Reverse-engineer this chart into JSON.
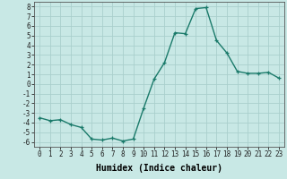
{
  "x": [
    0,
    1,
    2,
    3,
    4,
    5,
    6,
    7,
    8,
    9,
    10,
    11,
    12,
    13,
    14,
    15,
    16,
    17,
    18,
    19,
    20,
    21,
    22,
    23
  ],
  "y": [
    -3.5,
    -3.8,
    -3.7,
    -4.2,
    -4.5,
    -5.7,
    -5.8,
    -5.6,
    -5.9,
    -5.7,
    -2.5,
    0.5,
    2.2,
    5.3,
    5.2,
    7.8,
    7.9,
    4.5,
    3.2,
    1.3,
    1.1,
    1.1,
    1.2,
    0.6
  ],
  "color": "#1a7a6a",
  "bg_color": "#c8e8e5",
  "grid_color": "#aacfcc",
  "xlabel": "Humidex (Indice chaleur)",
  "xlim": [
    -0.5,
    23.5
  ],
  "ylim": [
    -6.5,
    8.5
  ],
  "yticks": [
    -6,
    -5,
    -4,
    -3,
    -2,
    -1,
    0,
    1,
    2,
    3,
    4,
    5,
    6,
    7,
    8
  ],
  "xticks": [
    0,
    1,
    2,
    3,
    4,
    5,
    6,
    7,
    8,
    9,
    10,
    11,
    12,
    13,
    14,
    15,
    16,
    17,
    18,
    19,
    20,
    21,
    22,
    23
  ],
  "linewidth": 1.0,
  "markersize": 3.0,
  "xlabel_fontsize": 7,
  "tick_fontsize": 5.5
}
